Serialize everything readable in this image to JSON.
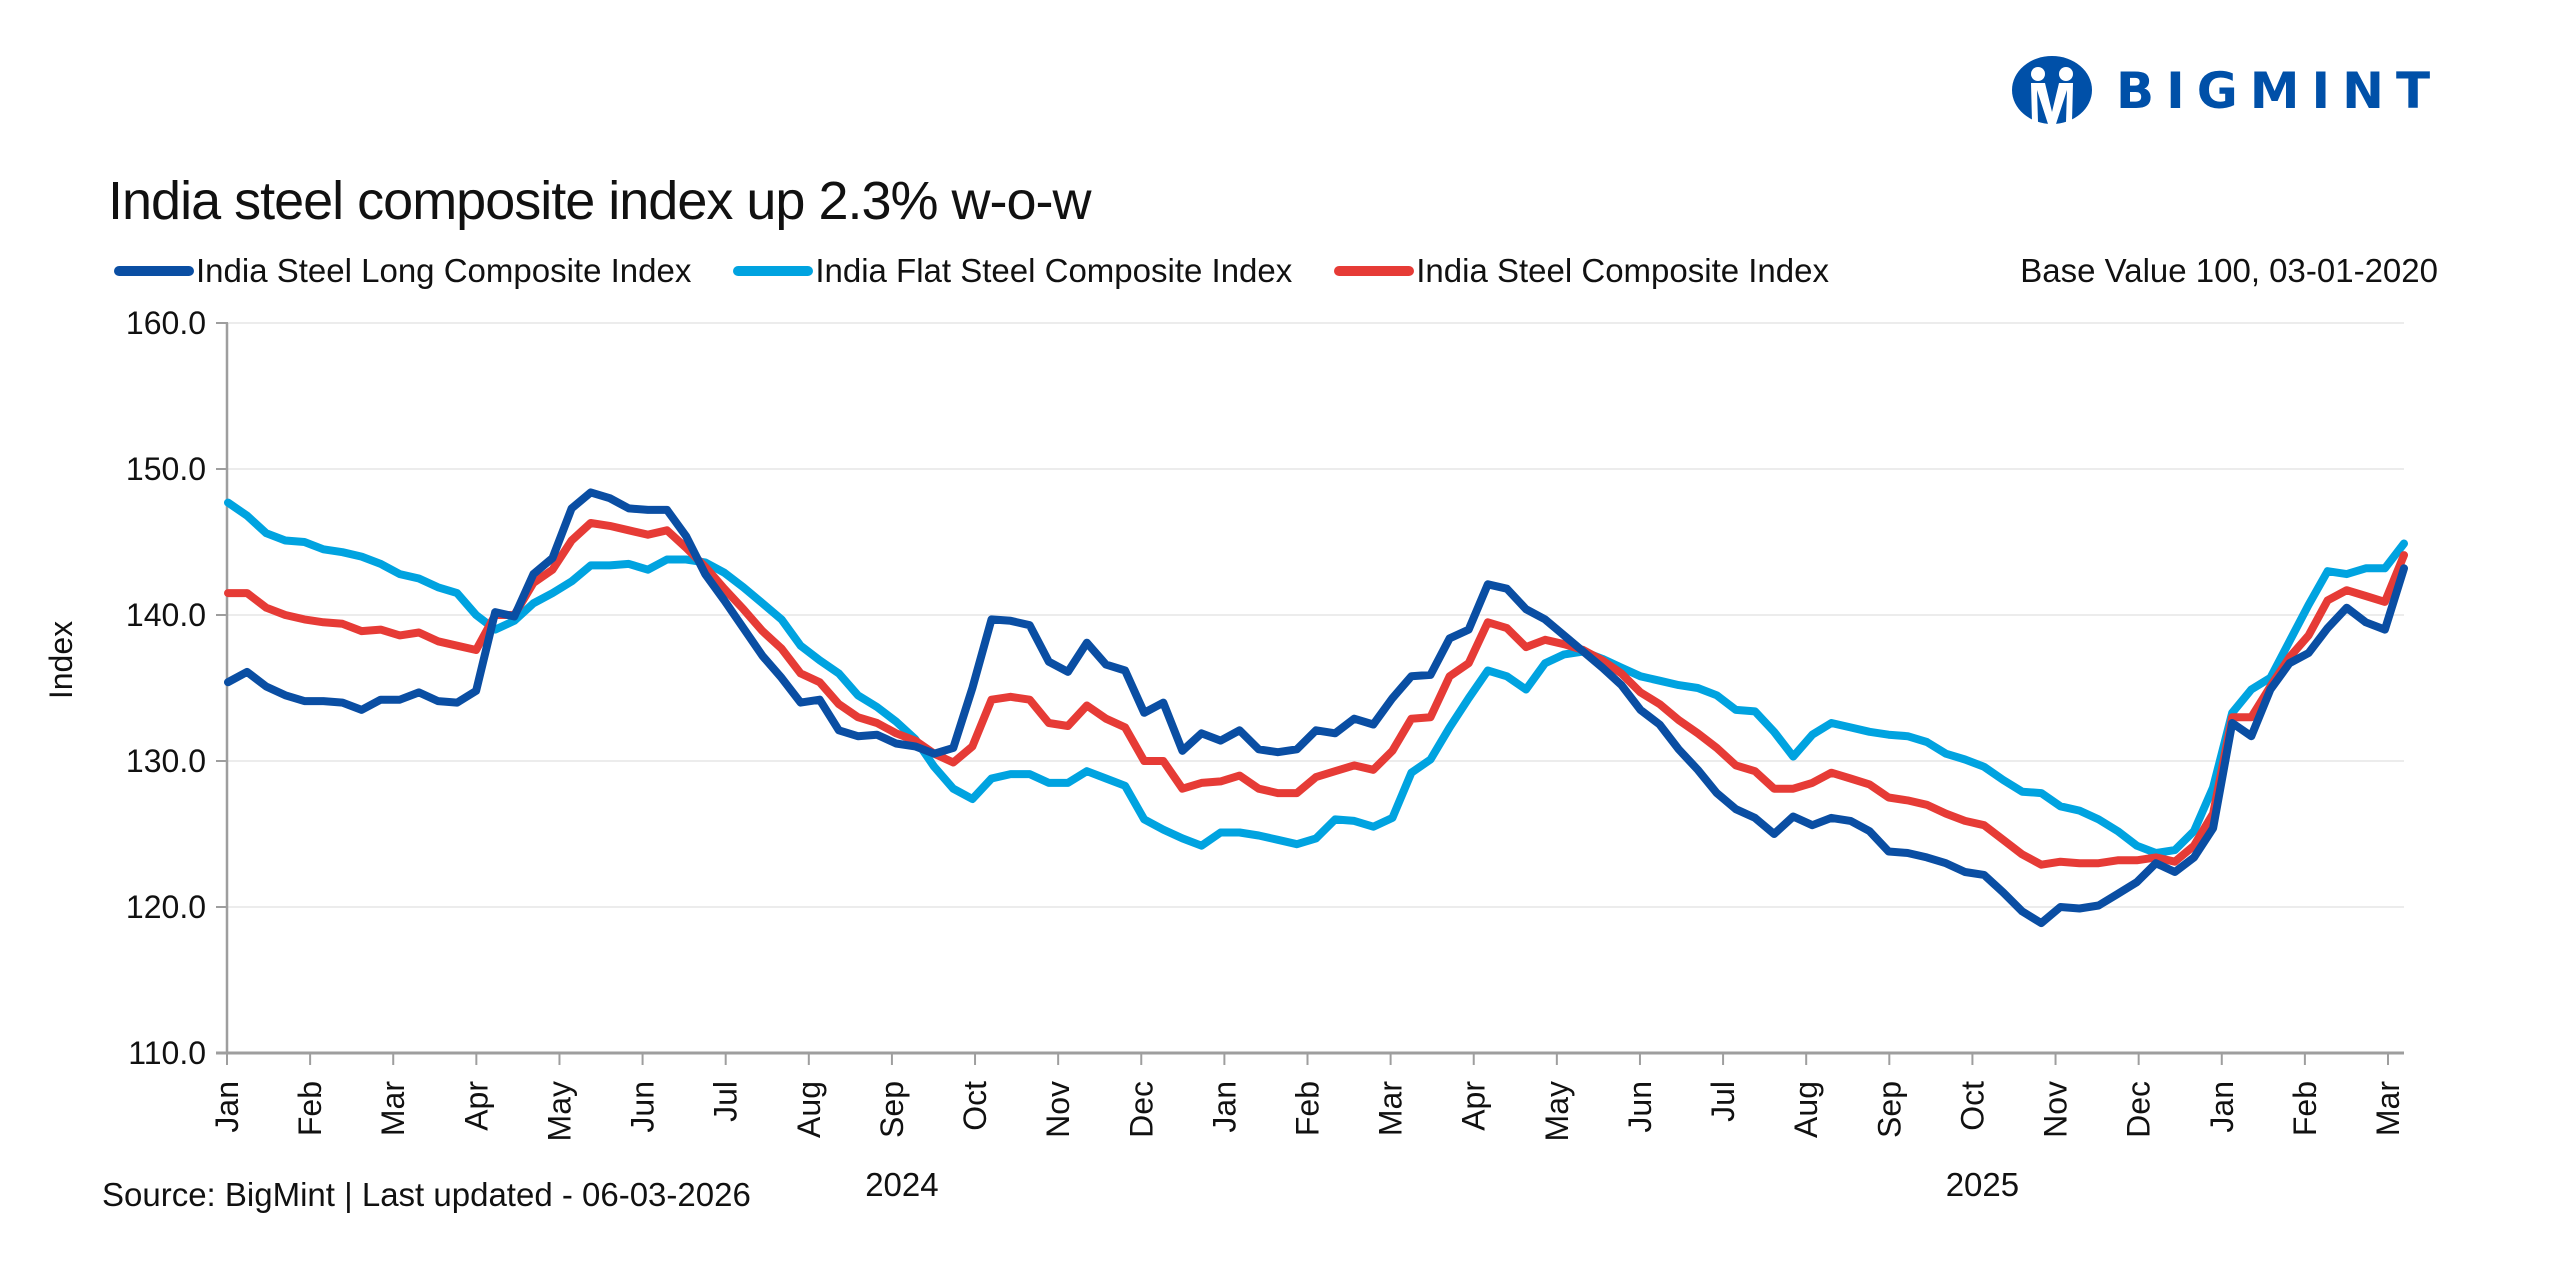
{
  "brand": {
    "name": "BIGMINT",
    "color": "#0050a8"
  },
  "base_note": "Base Value 100, 03-01-2020",
  "source": "Source: BigMint | Last updated - 06-03-2026",
  "chart_data": {
    "type": "line",
    "title": "India steel composite index up 2.3% w-o-w",
    "xlabel": "",
    "ylabel": "Index",
    "ylim": [
      110,
      160
    ],
    "y_ticks": [
      "110.0",
      "120.0",
      "130.0",
      "140.0",
      "150.0",
      "160.0"
    ],
    "y_tick_values": [
      110,
      120,
      130,
      140,
      150,
      160
    ],
    "grid": true,
    "legend_position": "top",
    "x_frequency": "weekly",
    "x_range": "Jan 2024 – Mar 2026",
    "month_ticks": [
      "Jan",
      "Feb",
      "Mar",
      "Apr",
      "May",
      "Jun",
      "Jul",
      "Aug",
      "Sep",
      "Oct",
      "Nov",
      "Dec",
      "Jan",
      "Feb",
      "Mar",
      "Apr",
      "May",
      "Jun",
      "Jul",
      "Aug",
      "Sep",
      "Oct",
      "Nov",
      "Dec",
      "Jan",
      "Feb",
      "Mar"
    ],
    "year_labels": [
      {
        "label": "2024",
        "month_index": 8
      },
      {
        "label": "2025",
        "month_index": 21
      }
    ],
    "series": [
      {
        "name": "India Steel Long Composite Index",
        "color": "#0a4ea3",
        "values": [
          135.4,
          136.1,
          135.1,
          134.5,
          134.1,
          134.1,
          134.0,
          133.5,
          134.2,
          134.2,
          134.7,
          134.1,
          134.0,
          134.8,
          140.2,
          139.9,
          142.8,
          143.9,
          147.3,
          148.4,
          148.0,
          147.3,
          147.2,
          147.2,
          145.4,
          142.8,
          141.0,
          139.1,
          137.2,
          135.7,
          134.0,
          134.2,
          132.1,
          131.7,
          131.8,
          131.2,
          131.0,
          130.5,
          130.9,
          135.0,
          139.7,
          139.6,
          139.3,
          136.8,
          136.1,
          138.1,
          136.6,
          136.2,
          133.3,
          134.0,
          130.7,
          131.9,
          131.4,
          132.1,
          130.8,
          130.6,
          130.8,
          132.1,
          131.9,
          132.9,
          132.5,
          134.3,
          135.8,
          135.9,
          138.4,
          139.0,
          142.1,
          141.8,
          140.4,
          139.7,
          138.6,
          137.5,
          136.4,
          135.2,
          133.5,
          132.5,
          130.8,
          129.4,
          127.8,
          126.7,
          126.1,
          125.0,
          126.2,
          125.6,
          126.1,
          125.9,
          125.2,
          123.8,
          123.7,
          123.4,
          123.0,
          122.4,
          122.2,
          121.0,
          119.7,
          118.9,
          120.0,
          119.9,
          120.1,
          120.9,
          121.7,
          123.0,
          122.4,
          123.4,
          125.4,
          132.6,
          131.7,
          134.9,
          136.7,
          137.4,
          139.1,
          140.5,
          139.5,
          139.0,
          143.2
        ]
      },
      {
        "name": "India Flat Steel Composite Index",
        "color": "#00a3e0",
        "values": [
          147.7,
          146.8,
          145.6,
          145.1,
          145.0,
          144.5,
          144.3,
          144.0,
          143.5,
          142.8,
          142.5,
          141.9,
          141.5,
          140.0,
          139.0,
          139.6,
          140.8,
          141.5,
          142.3,
          143.4,
          143.4,
          143.5,
          143.1,
          143.8,
          143.8,
          143.6,
          142.9,
          141.9,
          140.8,
          139.7,
          137.9,
          136.9,
          136.0,
          134.5,
          133.7,
          132.7,
          131.5,
          129.6,
          128.1,
          127.4,
          128.8,
          129.1,
          129.1,
          128.5,
          128.5,
          129.3,
          128.8,
          128.3,
          126.0,
          125.3,
          124.7,
          124.2,
          125.1,
          125.1,
          124.9,
          124.6,
          124.3,
          124.7,
          126.0,
          125.9,
          125.5,
          126.1,
          129.2,
          130.1,
          132.3,
          134.3,
          136.2,
          135.8,
          134.9,
          136.7,
          137.3,
          137.5,
          137.0,
          136.4,
          135.8,
          135.5,
          135.2,
          135.0,
          134.5,
          133.5,
          133.4,
          132.0,
          130.3,
          131.8,
          132.6,
          132.3,
          132.0,
          131.8,
          131.7,
          131.3,
          130.5,
          130.1,
          129.6,
          128.7,
          127.9,
          127.8,
          126.9,
          126.6,
          126.0,
          125.2,
          124.2,
          123.7,
          123.9,
          125.2,
          128.2,
          133.3,
          134.9,
          135.7,
          138.2,
          140.7,
          143.0,
          142.8,
          143.2,
          143.2,
          144.9
        ]
      },
      {
        "name": "India Steel Composite Index",
        "color": "#e63b36",
        "values": [
          141.5,
          141.5,
          140.5,
          140.0,
          139.7,
          139.5,
          139.4,
          138.9,
          139.0,
          138.6,
          138.8,
          138.2,
          137.9,
          137.6,
          140.0,
          140.0,
          142.2,
          143.1,
          145.1,
          146.3,
          146.1,
          145.8,
          145.5,
          145.8,
          144.6,
          143.3,
          141.8,
          140.4,
          138.9,
          137.7,
          136.0,
          135.4,
          133.9,
          133.0,
          132.6,
          131.9,
          131.4,
          130.5,
          129.9,
          131.0,
          134.2,
          134.4,
          134.2,
          132.6,
          132.4,
          133.8,
          132.9,
          132.3,
          130.0,
          130.0,
          128.1,
          128.5,
          128.6,
          129.0,
          128.1,
          127.8,
          127.8,
          128.9,
          129.3,
          129.7,
          129.4,
          130.7,
          132.9,
          133.0,
          135.8,
          136.7,
          139.5,
          139.1,
          137.8,
          138.3,
          138.0,
          137.6,
          136.9,
          136.0,
          134.7,
          133.9,
          132.8,
          131.9,
          130.9,
          129.7,
          129.3,
          128.1,
          128.1,
          128.5,
          129.2,
          128.8,
          128.4,
          127.5,
          127.3,
          127.0,
          126.4,
          125.9,
          125.6,
          124.6,
          123.6,
          122.9,
          123.1,
          123.0,
          123.0,
          123.2,
          123.2,
          123.4,
          123.1,
          124.2,
          126.4,
          133.0,
          133.0,
          135.1,
          137.1,
          138.6,
          141.0,
          141.7,
          141.3,
          140.9,
          144.1
        ]
      }
    ]
  }
}
